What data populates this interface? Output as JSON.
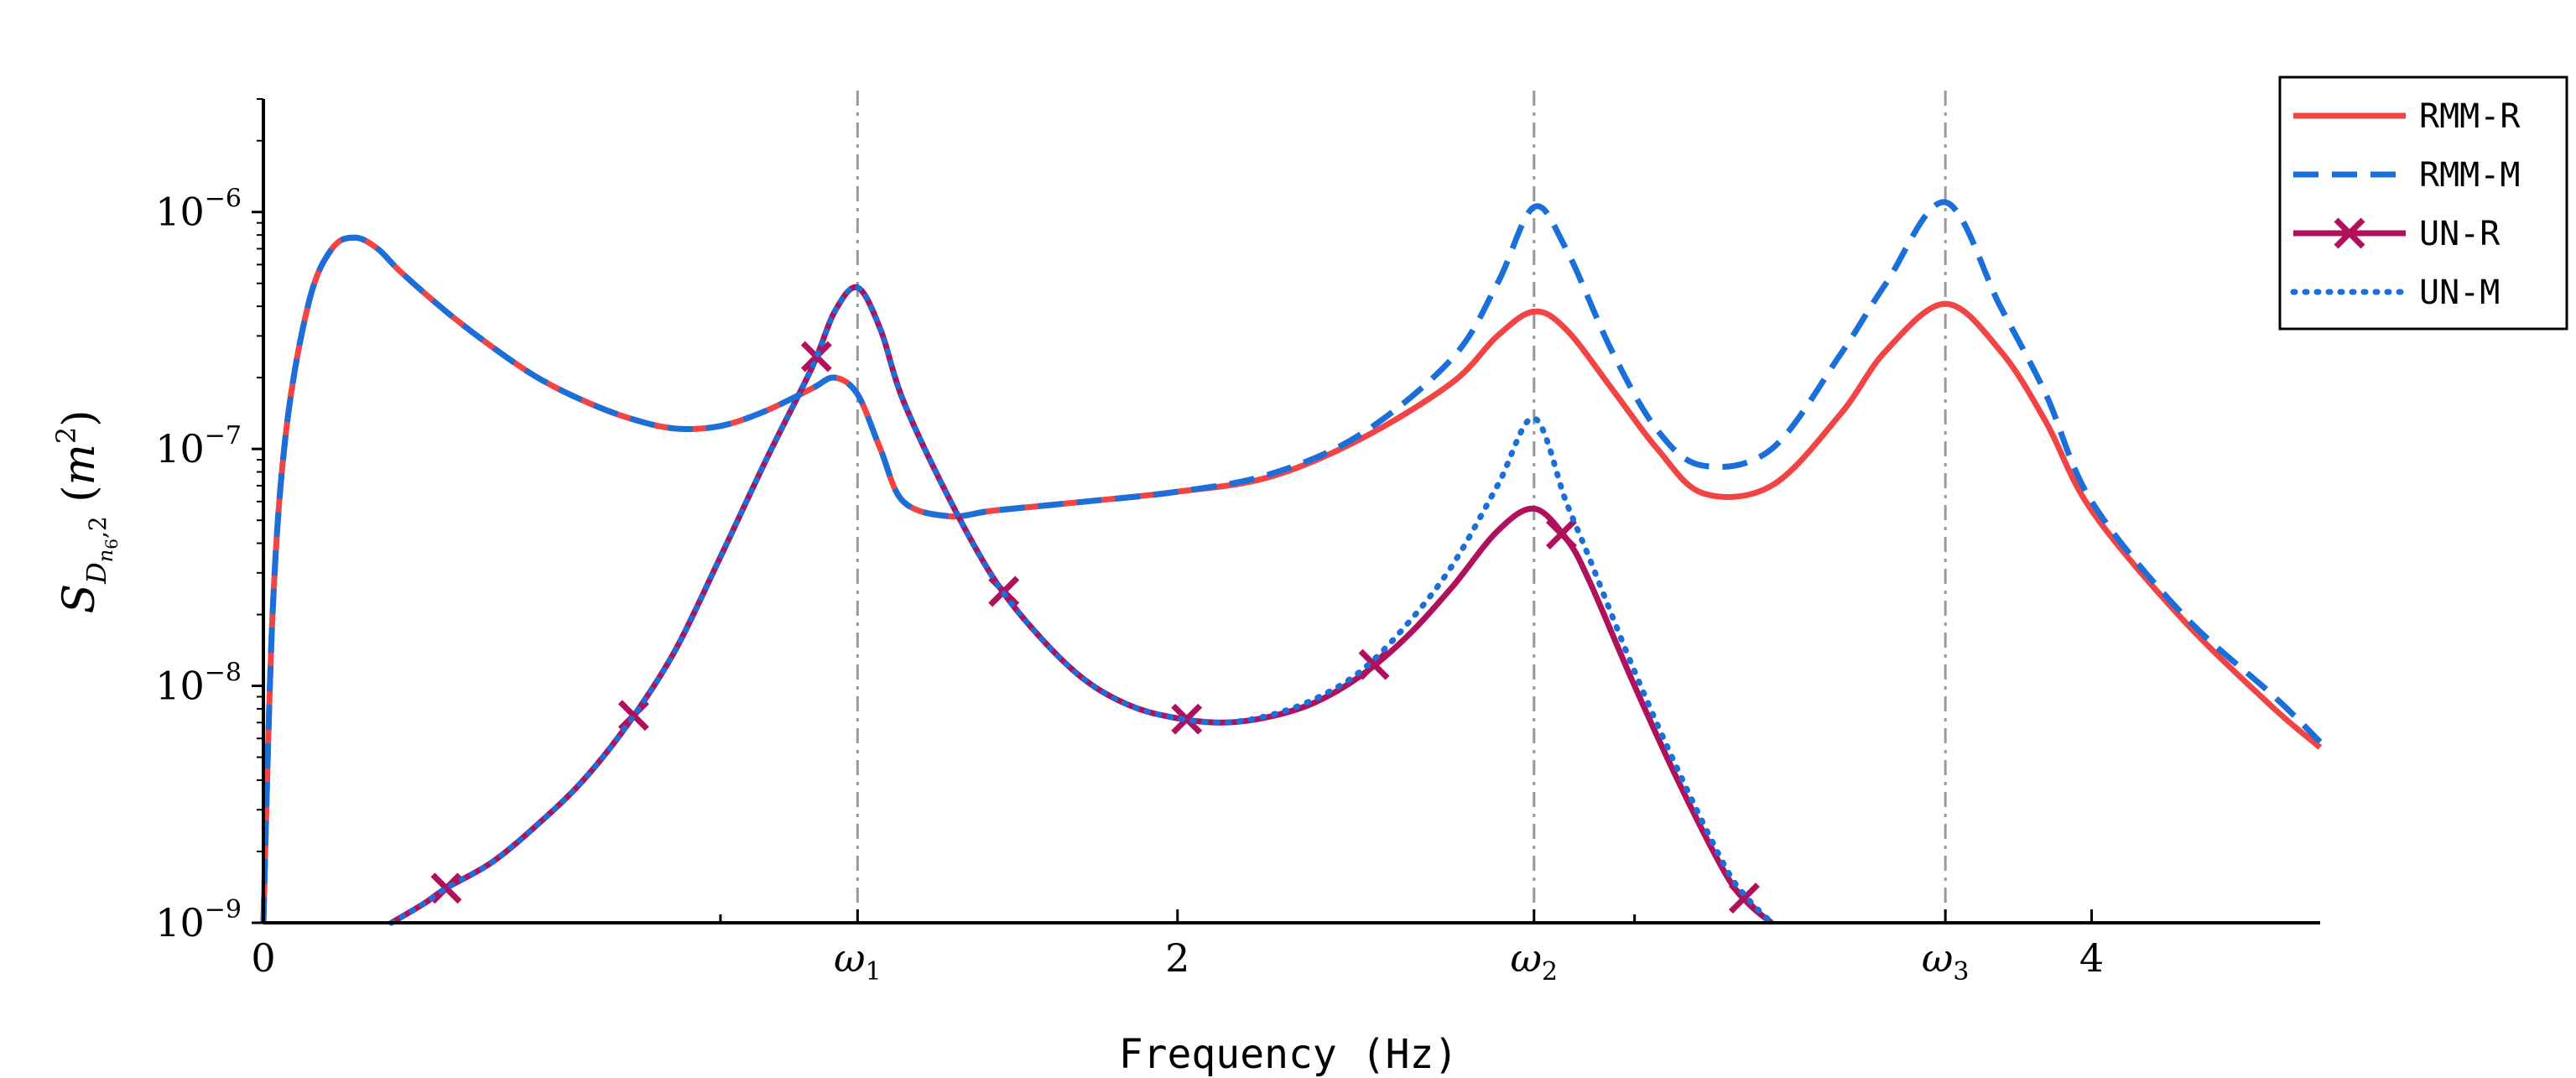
{
  "chart_data": {
    "type": "line",
    "xlabel": "Frequency (Hz)",
    "ylabel": "S_{D_{n6},2} (m^2)",
    "yscale": "log",
    "xlim": [
      0,
      4.5
    ],
    "ylim": [
      1e-09,
      3e-06
    ],
    "x_ticks": [
      {
        "value": 0,
        "label": "0"
      },
      {
        "value": 1.3,
        "label": "ω",
        "sub": "1"
      },
      {
        "value": 2,
        "label": "2"
      },
      {
        "value": 2.78,
        "label": "ω",
        "sub": "2"
      },
      {
        "value": 3.68,
        "label": "ω",
        "sub": "3"
      },
      {
        "value": 4,
        "label": "4"
      }
    ],
    "y_ticks": [
      {
        "value": 1e-09,
        "exp": "−9"
      },
      {
        "value": 1e-08,
        "exp": "−8"
      },
      {
        "value": 1e-07,
        "exp": "−7"
      },
      {
        "value": 1e-06,
        "exp": "−6"
      }
    ],
    "reference_lines": [
      1.3,
      2.78,
      3.68
    ],
    "colors": {
      "rmm_r": "#f24444",
      "rmm_m": "#1a6fd8",
      "un_r": "#b0105c",
      "un_m": "#1a6fd8",
      "ref": "#999999"
    },
    "series": [
      {
        "name": "RMM-R",
        "style": "solid",
        "x": [
          0,
          0.02,
          0.05,
          0.1,
          0.15,
          0.2,
          0.25,
          0.3,
          0.4,
          0.5,
          0.6,
          0.7,
          0.8,
          0.9,
          1.0,
          1.1,
          1.2,
          1.25,
          1.3,
          1.35,
          1.4,
          1.5,
          1.6,
          1.8,
          2.0,
          2.2,
          2.4,
          2.6,
          2.7,
          2.78,
          2.85,
          2.95,
          3.05,
          3.15,
          3.3,
          3.45,
          3.55,
          3.68,
          3.8,
          3.9,
          4.0,
          4.2,
          4.4,
          4.5
        ],
        "y": [
          1e-09,
          2e-08,
          1.2e-07,
          4.2e-07,
          7e-07,
          7.8e-07,
          7e-07,
          5.6e-07,
          3.8e-07,
          2.7e-07,
          2e-07,
          1.6e-07,
          1.35e-07,
          1.22e-07,
          1.25e-07,
          1.45e-07,
          1.8e-07,
          2e-07,
          1.7e-07,
          1e-07,
          6e-08,
          5.2e-08,
          5.5e-08,
          6e-08,
          6.6e-08,
          7.6e-08,
          1.1e-07,
          1.9e-07,
          3e-07,
          3.8e-07,
          3.2e-07,
          1.8e-07,
          1e-07,
          6.5e-08,
          7e-08,
          1.4e-07,
          2.6e-07,
          4.1e-07,
          2.6e-07,
          1.3e-07,
          5.5e-08,
          1.9e-08,
          8e-09,
          5.5e-09
        ]
      },
      {
        "name": "RMM-M",
        "style": "dashed",
        "x": [
          0,
          0.02,
          0.05,
          0.1,
          0.15,
          0.2,
          0.25,
          0.3,
          0.4,
          0.5,
          0.6,
          0.7,
          0.8,
          0.9,
          1.0,
          1.1,
          1.2,
          1.25,
          1.3,
          1.35,
          1.4,
          1.5,
          1.6,
          1.8,
          2.0,
          2.2,
          2.4,
          2.6,
          2.7,
          2.78,
          2.85,
          2.95,
          3.05,
          3.15,
          3.3,
          3.45,
          3.55,
          3.68,
          3.8,
          3.9,
          4.0,
          4.2,
          4.4,
          4.5
        ],
        "y": [
          1e-09,
          2e-08,
          1.2e-07,
          4.2e-07,
          7e-07,
          7.8e-07,
          7e-07,
          5.6e-07,
          3.8e-07,
          2.7e-07,
          2e-07,
          1.6e-07,
          1.35e-07,
          1.22e-07,
          1.25e-07,
          1.45e-07,
          1.8e-07,
          2e-07,
          1.7e-07,
          1e-07,
          6e-08,
          5.2e-08,
          5.5e-08,
          6e-08,
          6.6e-08,
          7.8e-08,
          1.15e-07,
          2.4e-07,
          5e-07,
          1.05e-06,
          7e-07,
          2.6e-07,
          1.2e-07,
          8.5e-08,
          1e-07,
          2.5e-07,
          5e-07,
          1.1e-06,
          4e-07,
          1.7e-07,
          6e-08,
          2e-08,
          9e-09,
          5.8e-09
        ]
      },
      {
        "name": "UN-R",
        "style": "solid-marker",
        "x": [
          0.28,
          0.35,
          0.4,
          0.5,
          0.6,
          0.7,
          0.8,
          0.9,
          1.0,
          1.1,
          1.2,
          1.25,
          1.3,
          1.35,
          1.4,
          1.5,
          1.6,
          1.7,
          1.8,
          1.9,
          2.0,
          2.1,
          2.2,
          2.3,
          2.4,
          2.5,
          2.6,
          2.7,
          2.78,
          2.85,
          2.9,
          3.0,
          3.1,
          3.2,
          3.25,
          3.3
        ],
        "y": [
          1e-09,
          1.2e-09,
          1.4e-09,
          1.8e-09,
          2.6e-09,
          4e-09,
          7e-09,
          1.4e-08,
          3.5e-08,
          9e-08,
          2.2e-07,
          3.8e-07,
          4.8e-07,
          3.2e-07,
          1.6e-07,
          6.2e-08,
          2.8e-08,
          1.6e-08,
          1.05e-08,
          8.2e-09,
          7.3e-09,
          7e-09,
          7.4e-09,
          8.5e-09,
          1.1e-08,
          1.6e-08,
          2.6e-08,
          4.5e-08,
          5.6e-08,
          4.2e-08,
          2.8e-08,
          1e-08,
          3.8e-09,
          1.6e-09,
          1.2e-09,
          1e-09
        ],
        "markers_x": [
          0.4,
          0.81,
          1.21,
          1.62,
          2.02,
          2.43,
          2.84,
          3.24
        ]
      },
      {
        "name": "UN-M",
        "style": "dotted",
        "x": [
          0.28,
          0.35,
          0.4,
          0.5,
          0.6,
          0.7,
          0.8,
          0.9,
          1.0,
          1.1,
          1.2,
          1.25,
          1.3,
          1.35,
          1.4,
          1.5,
          1.6,
          1.7,
          1.8,
          1.9,
          2.0,
          2.1,
          2.2,
          2.3,
          2.4,
          2.5,
          2.6,
          2.7,
          2.78,
          2.85,
          2.9,
          3.0,
          3.1,
          3.2,
          3.25,
          3.3
        ],
        "y": [
          1e-09,
          1.2e-09,
          1.4e-09,
          1.8e-09,
          2.6e-09,
          4e-09,
          7e-09,
          1.4e-08,
          3.5e-08,
          9e-08,
          2.2e-07,
          3.8e-07,
          4.8e-07,
          3.2e-07,
          1.6e-07,
          6.2e-08,
          2.8e-08,
          1.6e-08,
          1.05e-08,
          8.2e-09,
          7.3e-09,
          7e-09,
          7.5e-09,
          8.8e-09,
          1.15e-08,
          1.8e-08,
          3.2e-08,
          7e-08,
          1.35e-07,
          6e-08,
          3.5e-08,
          1.15e-08,
          4.2e-09,
          1.7e-09,
          1.25e-09,
          1e-09
        ]
      }
    ],
    "legend": {
      "position": "top-right",
      "entries": [
        "RMM-R",
        "RMM-M",
        "UN-R",
        "UN-M"
      ]
    }
  }
}
